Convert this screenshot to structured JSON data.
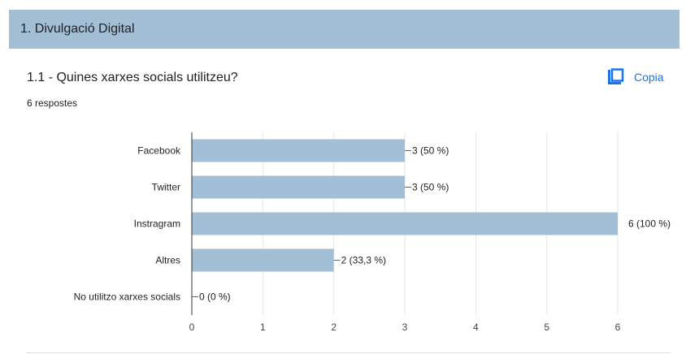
{
  "section": {
    "title": "1. Divulgació Digital"
  },
  "question": {
    "title": "1.1 - Quines xarxes socials utilitzeu?",
    "responses": "6 respostes",
    "copy_label": "Copia"
  },
  "colors": {
    "bar": "#a3bfd6",
    "header": "#a3bfd6",
    "accent": "#1a73e8",
    "grid": "#e6e6e6",
    "axis": "#333333"
  },
  "chart_data": {
    "type": "bar",
    "orientation": "horizontal",
    "categories": [
      "Facebook",
      "Twitter",
      "Instragram",
      "Altres",
      "No utilitzo xarxes socials"
    ],
    "values": [
      3,
      3,
      6,
      2,
      0
    ],
    "data_labels": [
      "3 (50 %)",
      "3 (50 %)",
      "6 (100 %)",
      "2 (33,3 %)",
      "0 (0 %)"
    ],
    "xlim": [
      0,
      6
    ],
    "x_ticks": [
      0,
      1,
      2,
      3,
      4,
      5,
      6
    ],
    "grid": true,
    "title": "",
    "xlabel": "",
    "ylabel": ""
  }
}
